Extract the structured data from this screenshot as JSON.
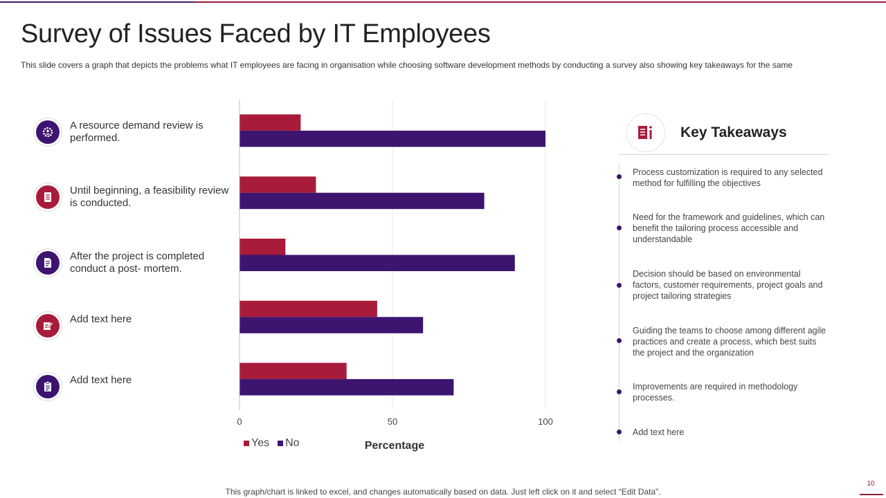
{
  "title": "Survey of Issues Faced by IT Employees",
  "subtitle": "This slide covers a graph that depicts the problems what IT employees are facing in organisation while choosing software development methods by conducting a survey  also showing key takeaways for the same",
  "colors": {
    "yes": "#a81b3a",
    "no": "#3d1470",
    "grid": "#e8e8e8"
  },
  "issues": [
    {
      "text": "A resource demand review is performed.",
      "icon": "gear-people-icon",
      "color": "purple"
    },
    {
      "text": "Until beginning, a feasibility review is conducted.",
      "icon": "checklist-icon",
      "color": "red"
    },
    {
      "text": "After the project is completed conduct a post- mortem.",
      "icon": "report-icon",
      "color": "purple"
    },
    {
      "text": "Add text here",
      "icon": "edit-document-icon",
      "color": "red"
    },
    {
      "text": "Add text here",
      "icon": "clipboard-icon",
      "color": "purple"
    }
  ],
  "chart_data": {
    "type": "bar",
    "orientation": "horizontal",
    "categories": [
      "A resource demand review is performed.",
      "Until beginning, a feasibility review is conducted.",
      "After the project is completed conduct a post- mortem.",
      "Add text here",
      "Add text here"
    ],
    "series": [
      {
        "name": "Yes",
        "values": [
          20,
          25,
          15,
          45,
          35
        ]
      },
      {
        "name": "No",
        "values": [
          100,
          80,
          90,
          60,
          70
        ]
      }
    ],
    "xlim": [
      0,
      100
    ],
    "xticks": [
      "0",
      "50",
      "100"
    ],
    "xlabel": "Percentage",
    "ylabel": "",
    "legend": [
      "Yes",
      "No"
    ],
    "legend_position": "bottom-left",
    "grid": true
  },
  "takeaways": {
    "title": "Key Takeaways",
    "icon": "document-info-icon",
    "items": [
      "Process customization is required to any selected method for fulfilling the objectives",
      "Need for the framework  and guidelines, which can benefit the tailoring process accessible and understandable",
      "Decision should be based on environmental factors, customer requirements,  project goals and project tailoring strategies",
      "Guiding the teams to choose among different agile practices and create a process, which best suits the project and the organization",
      "Improvements  are required in methodology processes.",
      "Add text here"
    ]
  },
  "footer": "This graph/chart is linked to excel,  and changes automatically based on data. Just left click on it and select “Edit Data”.",
  "page_number": "10"
}
